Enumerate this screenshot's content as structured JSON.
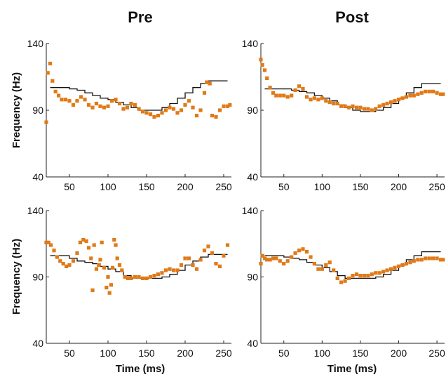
{
  "columns": [
    "Pre",
    "Post"
  ],
  "ylabel": "Frequency (Hz)",
  "xlabel": "Time (ms)",
  "colors": {
    "points": "#e07a17",
    "line": "#111111"
  },
  "chart_data": [
    {
      "type": "scatter",
      "column": "Pre",
      "row": 1,
      "xlim": [
        20,
        260
      ],
      "ylim": [
        40,
        140
      ],
      "xticks": [
        50,
        100,
        150,
        200,
        250
      ],
      "yticks": [
        40,
        90,
        140
      ],
      "ytick_labels": [
        "40",
        "90",
        "140"
      ],
      "series": [
        {
          "kind": "line",
          "x": [
            25,
            35,
            45,
            55,
            65,
            75,
            85,
            95,
            105,
            115,
            125,
            135,
            145,
            155,
            165,
            175,
            185,
            195,
            205,
            215,
            225,
            235,
            245,
            255
          ],
          "y": [
            107,
            107,
            107,
            106,
            105,
            103,
            101,
            99,
            98,
            96,
            94,
            92,
            90,
            90,
            90,
            92,
            95,
            99,
            103,
            107,
            110,
            112,
            112,
            112
          ]
        },
        {
          "kind": "points",
          "x": [
            20,
            22,
            25,
            28,
            32,
            36,
            40,
            45,
            50,
            55,
            60,
            65,
            70,
            75,
            80,
            85,
            90,
            95,
            100,
            105,
            110,
            115,
            120,
            125,
            130,
            135,
            140,
            145,
            150,
            155,
            160,
            165,
            170,
            175,
            180,
            185,
            190,
            195,
            200,
            205,
            210,
            215,
            220,
            225,
            228,
            232,
            235,
            240,
            245,
            250,
            255,
            258
          ],
          "y": [
            81,
            118,
            125,
            112,
            104,
            101,
            98,
            98,
            97,
            94,
            97,
            100,
            98,
            94,
            92,
            95,
            93,
            92,
            93,
            97,
            98,
            95,
            91,
            92,
            95,
            94,
            91,
            89,
            88,
            87,
            85,
            86,
            88,
            90,
            92,
            91,
            88,
            90,
            94,
            97,
            92,
            86,
            90,
            103,
            111,
            110,
            86,
            85,
            90,
            93,
            93,
            94
          ]
        }
      ]
    },
    {
      "type": "scatter",
      "column": "Post",
      "row": 1,
      "xlim": [
        20,
        260
      ],
      "ylim": [
        40,
        140
      ],
      "xticks": [
        50,
        100,
        150,
        200,
        250
      ],
      "yticks": [
        40,
        90,
        140
      ],
      "ytick_labels": [
        "40",
        "90",
        "140"
      ],
      "series": [
        {
          "kind": "line",
          "x": [
            25,
            35,
            45,
            55,
            65,
            75,
            85,
            95,
            105,
            115,
            125,
            135,
            145,
            155,
            165,
            175,
            185,
            195,
            205,
            215,
            225,
            235,
            245,
            255
          ],
          "y": [
            106,
            106,
            106,
            106,
            105,
            104,
            103,
            101,
            99,
            97,
            94,
            92,
            90,
            89,
            89,
            90,
            92,
            95,
            99,
            103,
            107,
            110,
            110,
            110
          ]
        },
        {
          "kind": "points",
          "x": [
            20,
            22,
            25,
            28,
            32,
            36,
            40,
            45,
            50,
            55,
            60,
            65,
            70,
            75,
            80,
            85,
            90,
            95,
            100,
            105,
            110,
            115,
            120,
            125,
            130,
            135,
            140,
            145,
            150,
            155,
            160,
            165,
            170,
            175,
            180,
            185,
            190,
            195,
            200,
            205,
            210,
            215,
            220,
            225,
            230,
            235,
            240,
            245,
            250,
            255,
            258
          ],
          "y": [
            128,
            124,
            120,
            114,
            107,
            103,
            101,
            101,
            101,
            100,
            101,
            105,
            108,
            106,
            100,
            98,
            99,
            98,
            99,
            97,
            96,
            95,
            95,
            93,
            93,
            92,
            93,
            92,
            92,
            91,
            91,
            90,
            91,
            93,
            94,
            95,
            96,
            97,
            98,
            99,
            100,
            101,
            101,
            102,
            103,
            104,
            104,
            104,
            103,
            102,
            102
          ]
        }
      ]
    },
    {
      "type": "scatter",
      "column": "Pre",
      "row": 2,
      "xlim": [
        20,
        260
      ],
      "ylim": [
        40,
        140
      ],
      "xticks": [
        50,
        100,
        150,
        200,
        250
      ],
      "yticks": [
        40,
        90,
        140
      ],
      "ytick_labels": [
        "40",
        "90",
        "140"
      ],
      "series": [
        {
          "kind": "line",
          "x": [
            25,
            35,
            45,
            55,
            65,
            75,
            85,
            95,
            105,
            115,
            125,
            135,
            145,
            155,
            165,
            175,
            185,
            195,
            205,
            215,
            225,
            235,
            245,
            255
          ],
          "y": [
            106,
            106,
            106,
            104,
            102,
            101,
            100,
            98,
            96,
            94,
            91,
            89,
            89,
            89,
            89,
            90,
            92,
            95,
            99,
            102,
            105,
            107,
            107,
            107
          ]
        },
        {
          "kind": "points",
          "x": [
            20,
            23,
            26,
            30,
            34,
            38,
            42,
            46,
            50,
            55,
            60,
            64,
            68,
            72,
            75,
            78,
            80,
            82,
            85,
            88,
            90,
            92,
            95,
            98,
            100,
            102,
            104,
            106,
            108,
            110,
            112,
            115,
            118,
            122,
            126,
            130,
            135,
            140,
            145,
            150,
            155,
            160,
            165,
            170,
            175,
            180,
            185,
            190,
            195,
            200,
            205,
            210,
            215,
            220,
            225,
            230,
            235,
            240,
            245,
            250,
            255
          ],
          "y": [
            116,
            116,
            114,
            110,
            105,
            102,
            100,
            98,
            99,
            102,
            108,
            116,
            118,
            117,
            112,
            104,
            80,
            114,
            96,
            99,
            103,
            116,
            97,
            82,
            90,
            78,
            84,
            97,
            118,
            114,
            104,
            99,
            95,
            90,
            89,
            89,
            90,
            90,
            89,
            89,
            90,
            91,
            92,
            93,
            95,
            96,
            95,
            95,
            99,
            104,
            104,
            99,
            96,
            103,
            110,
            113,
            108,
            100,
            98,
            106,
            114
          ]
        }
      ]
    },
    {
      "type": "scatter",
      "column": "Post",
      "row": 2,
      "xlim": [
        20,
        260
      ],
      "ylim": [
        40,
        140
      ],
      "xticks": [
        50,
        100,
        150,
        200,
        250
      ],
      "yticks": [
        40,
        90,
        140
      ],
      "ytick_labels": [
        "40",
        "90",
        "140"
      ],
      "series": [
        {
          "kind": "line",
          "x": [
            25,
            35,
            45,
            55,
            65,
            75,
            85,
            95,
            105,
            115,
            125,
            135,
            145,
            155,
            165,
            175,
            185,
            195,
            205,
            215,
            225,
            235,
            245,
            255
          ],
          "y": [
            106,
            106,
            106,
            105,
            104,
            103,
            101,
            99,
            97,
            94,
            91,
            89,
            89,
            89,
            89,
            90,
            92,
            95,
            99,
            103,
            106,
            109,
            109,
            109
          ]
        },
        {
          "kind": "points",
          "x": [
            20,
            22,
            25,
            28,
            32,
            36,
            40,
            45,
            50,
            55,
            60,
            65,
            70,
            75,
            80,
            85,
            90,
            95,
            100,
            105,
            110,
            115,
            120,
            125,
            130,
            135,
            140,
            145,
            150,
            155,
            160,
            165,
            170,
            175,
            180,
            185,
            190,
            195,
            200,
            205,
            210,
            215,
            220,
            225,
            230,
            235,
            240,
            245,
            250,
            255,
            258
          ],
          "y": [
            100,
            106,
            104,
            103,
            103,
            104,
            104,
            102,
            100,
            102,
            105,
            108,
            110,
            111,
            109,
            105,
            100,
            96,
            96,
            99,
            101,
            95,
            89,
            86,
            87,
            89,
            91,
            92,
            91,
            91,
            91,
            92,
            93,
            93,
            94,
            95,
            96,
            97,
            98,
            99,
            100,
            101,
            102,
            103,
            103,
            104,
            104,
            104,
            104,
            103,
            103
          ]
        }
      ]
    }
  ]
}
